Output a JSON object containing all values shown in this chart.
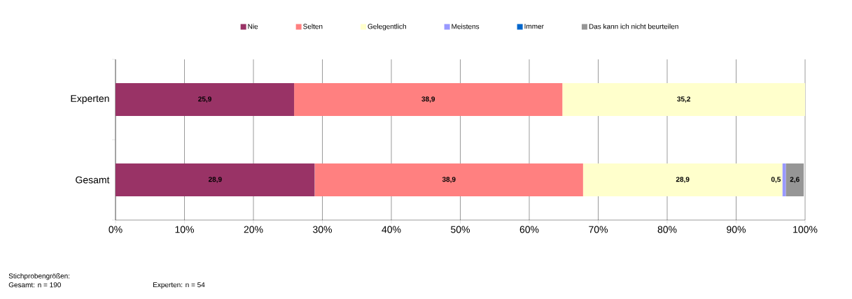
{
  "chart_data": {
    "type": "bar",
    "orientation": "horizontal",
    "stacked": true,
    "categories": [
      "Experten",
      "Gesamt"
    ],
    "series": [
      {
        "name": "Nie",
        "color": "#993366",
        "values": [
          25.9,
          28.9
        ],
        "value_labels": [
          "25,9",
          "28,9"
        ]
      },
      {
        "name": "Selten",
        "color": "#ff8080",
        "values": [
          38.9,
          38.9
        ],
        "value_labels": [
          "38,9",
          "38,9"
        ]
      },
      {
        "name": "Gelegentlich",
        "color": "#ffffcc",
        "values": [
          35.2,
          28.9
        ],
        "value_labels": [
          "35,2",
          "28,9"
        ]
      },
      {
        "name": "Meistens",
        "color": "#9999ff",
        "values": [
          0,
          0.5
        ],
        "value_labels": [
          null,
          "0,5"
        ]
      },
      {
        "name": "Immer",
        "color": "#0066cc",
        "values": [
          0,
          0
        ],
        "value_labels": [
          null,
          null
        ]
      },
      {
        "name": "Das kann ich nicht beurteilen",
        "color": "#969696",
        "values": [
          0,
          2.6
        ],
        "value_labels": [
          null,
          "2,6"
        ]
      }
    ],
    "xlim": [
      0,
      100
    ],
    "xticks": [
      {
        "value": 0,
        "label": "0%"
      },
      {
        "value": 10,
        "label": "10%"
      },
      {
        "value": 20,
        "label": "20%"
      },
      {
        "value": 30,
        "label": "30%"
      },
      {
        "value": 40,
        "label": "40%"
      },
      {
        "value": 50,
        "label": "50%"
      },
      {
        "value": 60,
        "label": "60%"
      },
      {
        "value": 70,
        "label": "70%"
      },
      {
        "value": 80,
        "label": "80%"
      },
      {
        "value": 90,
        "label": "90%"
      },
      {
        "value": 100,
        "label": "100%"
      }
    ],
    "grid": "x",
    "legend": "top",
    "annotations": [
      "Stichprobengrößen:",
      "Gesamt: n = 190",
      "Experten: n = 54"
    ]
  }
}
